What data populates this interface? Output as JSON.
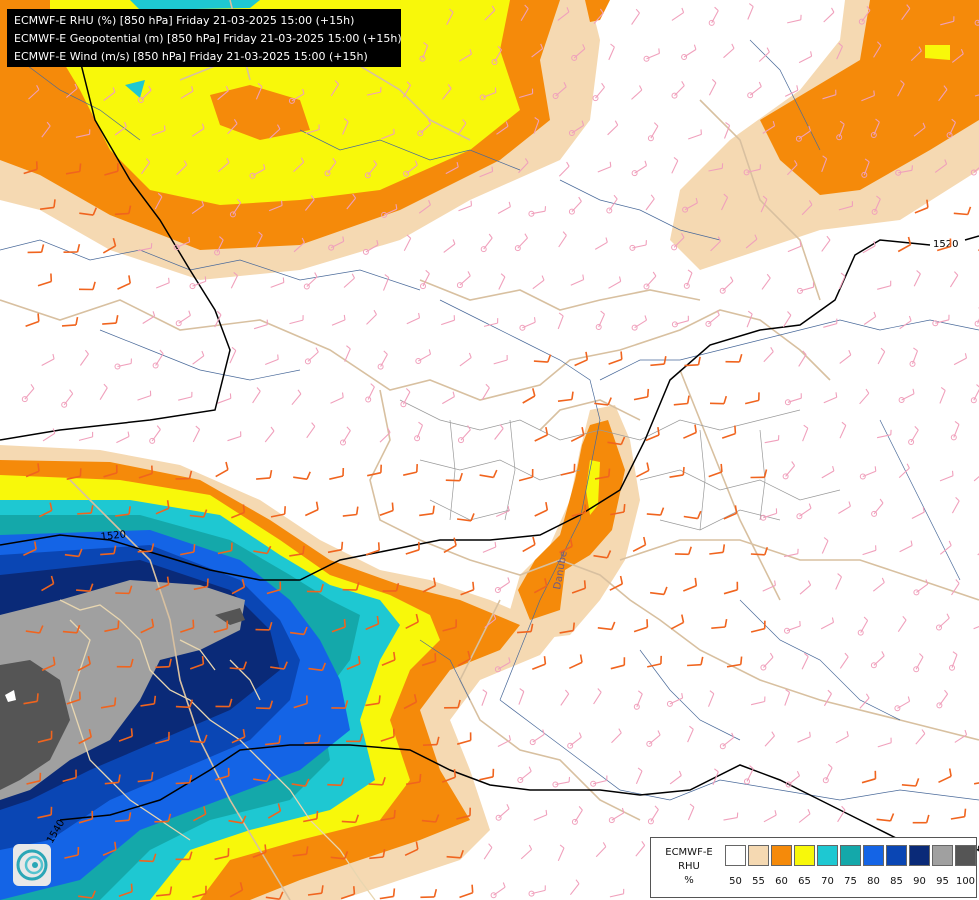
{
  "titles": [
    "ECMWF-E RHU (%) [850 hPa] Friday 21-03-2025 15:00 (+15h)",
    "ECMWF-E Geopotential (m) [850 hPa] Friday 21-03-2025 15:00 (+15h)",
    "ECMWF-E Wind (m/s) [850 hPa] Friday 21-03-2025 15:00 (+15h)"
  ],
  "legend": {
    "title_lines": [
      "ECMWF-E",
      "RHU",
      "%"
    ],
    "ticks": [
      "50",
      "55",
      "60",
      "65",
      "70",
      "75",
      "80",
      "85",
      "90",
      "95",
      "100"
    ],
    "colors": [
      "#ffffff",
      "#f5d9b2",
      "#f58a0a",
      "#f8f80a",
      "#1ec8d2",
      "#14a8aa",
      "#1464e6",
      "#0a46b4",
      "#0a2a78",
      "#a0a0a0",
      "#555555"
    ]
  },
  "contours": [
    {
      "label": "1520"
    },
    {
      "label": "1520"
    },
    {
      "label": "1540"
    },
    {
      "label": "1540"
    }
  ],
  "place_labels": [
    "Danube"
  ],
  "wind_colors": {
    "weak": "#f0a0bc",
    "strong": "#f0641e"
  },
  "logo": {
    "icon": "ecmwf-swirl-logo"
  }
}
